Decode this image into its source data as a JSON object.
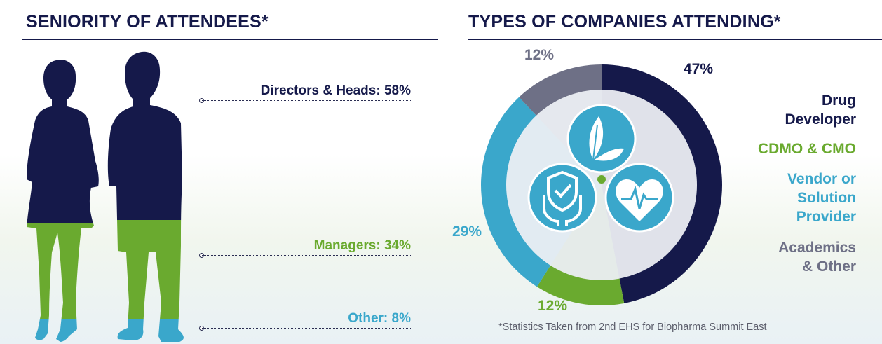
{
  "left_title": "SENIORITY OF ATTENDEES*",
  "right_title": "TYPES OF COMPANIES ATTENDING*",
  "footnote": "*Statistics Taken from 2nd EHS for Biopharma Summit East",
  "colors": {
    "navy": "#15194a",
    "green": "#6aaa2f",
    "blue": "#3aa7cb",
    "gray": "#6e7086"
  },
  "icons": [
    "leaf-icon",
    "shield-check-hands-icon",
    "heart-pulse-icon"
  ],
  "chart_data": [
    {
      "type": "bar",
      "title": "SENIORITY OF ATTENDEES*",
      "orientation": "stacked-vertical-silhouette",
      "categories": [
        "Directors & Heads",
        "Managers",
        "Other"
      ],
      "labels": [
        "Directors & Heads: 58%",
        "Managers: 34%",
        "Other: 8%"
      ],
      "values": [
        58,
        34,
        8
      ],
      "unit": "%",
      "series_colors": [
        "#15194a",
        "#6aaa2f",
        "#3aa7cb"
      ]
    },
    {
      "type": "pie",
      "title": "TYPES OF COMPANIES ATTENDING*",
      "style": "donut",
      "categories": [
        "Drug Developer",
        "CDMO & CMO",
        "Vendor or Solution Provider",
        "Academics & Other"
      ],
      "legend_lines": [
        [
          "Drug",
          "Developer"
        ],
        [
          "CDMO & CMO"
        ],
        [
          "Vendor or",
          "Solution",
          "Provider"
        ],
        [
          "Academics",
          "& Other"
        ]
      ],
      "values": [
        47,
        12,
        29,
        12
      ],
      "labels": [
        "47%",
        "12%",
        "29%",
        "12%"
      ],
      "colors": [
        "#15194a",
        "#6aaa2f",
        "#3aa7cb",
        "#6e7086"
      ],
      "legend_placement": "right"
    }
  ]
}
